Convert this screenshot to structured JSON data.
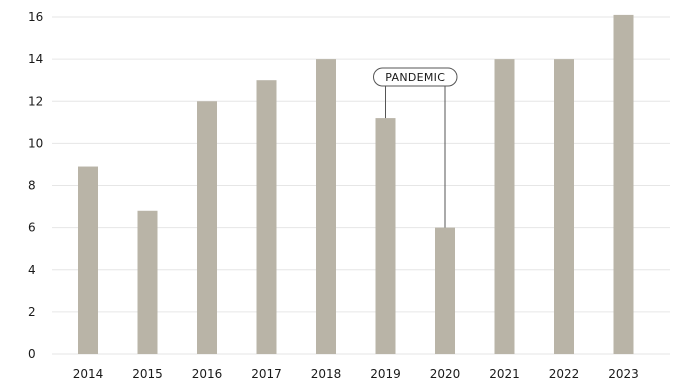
{
  "chart_data": {
    "type": "bar",
    "categories": [
      "2014",
      "2015",
      "2016",
      "2017",
      "2018",
      "2019",
      "2020",
      "2021",
      "2022",
      "2023"
    ],
    "values": [
      8.9,
      6.8,
      12.0,
      13.0,
      14.0,
      11.2,
      6.0,
      14.0,
      14.0,
      16.1
    ],
    "title": "",
    "xlabel": "",
    "ylabel": "",
    "ylim": [
      0,
      16
    ],
    "yticks": [
      0,
      2,
      4,
      6,
      8,
      10,
      12,
      14,
      16
    ],
    "grid": true,
    "legend": "none",
    "bar_color": "#b9b4a7",
    "grid_color": "#e6e6e6",
    "annotation": {
      "text": "PANDEMIC",
      "categories": [
        "2019",
        "2020"
      ]
    }
  }
}
